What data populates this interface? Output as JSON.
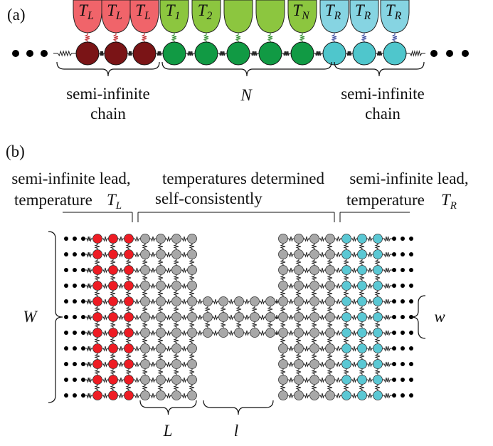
{
  "panel_a": {
    "label": "(a)",
    "reservoirs": [
      {
        "symbol": "T",
        "subscript": "L"
      },
      {
        "symbol": "T",
        "subscript": "L"
      },
      {
        "symbol": "T",
        "subscript": "L"
      },
      {
        "symbol": "T",
        "subscript": "1"
      },
      {
        "symbol": "T",
        "subscript": "2"
      },
      null,
      null,
      {
        "symbol": "T",
        "subscript": "N"
      },
      {
        "symbol": "T",
        "subscript": "R"
      },
      {
        "symbol": "T",
        "subscript": "R"
      },
      {
        "symbol": "T",
        "subscript": "R"
      }
    ],
    "left_brace": [
      "semi-infinite",
      "chain"
    ],
    "middle_brace": "N",
    "right_brace": [
      "semi-infinite",
      "chain"
    ]
  },
  "panel_b": {
    "label": "(b)",
    "left_lead": {
      "lines": [
        "semi-infinite lead,",
        "temperature"
      ],
      "symbol": "T",
      "subscript": "L"
    },
    "middle": [
      "temperatures determined",
      "self-consistently"
    ],
    "right_lead": {
      "lines": [
        "semi-infinite lead,",
        "temperature"
      ],
      "symbol": "T",
      "subscript": "R"
    },
    "width_label": "W",
    "neck_width_label": "w",
    "length_label": "L",
    "neck_length_label": "l"
  }
}
